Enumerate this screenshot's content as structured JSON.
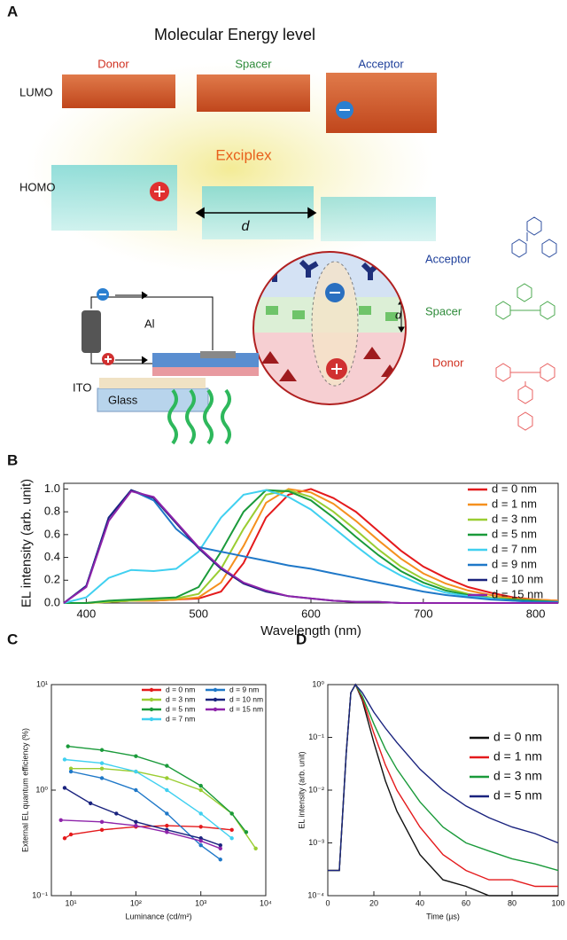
{
  "diagram": {
    "panel_label": "A",
    "title": "Molecular Energy level",
    "columns": [
      "Donor",
      "Spacer",
      "Acceptor"
    ],
    "levels": [
      "LUMO",
      "HOMO"
    ],
    "exciplex": "Exciplex",
    "distance": "d",
    "layers": [
      "Acceptor",
      "Spacer",
      "Donor"
    ],
    "layer_distance": "d",
    "device": [
      "Al",
      "ITO",
      "Glass"
    ]
  },
  "chart_data": [
    {
      "type": "line",
      "panel_label": "B",
      "x_label": "Wavelength (nm)",
      "y_label": "EL intensity (arb. unit)",
      "xlim": [
        380,
        820
      ],
      "xticks": [
        400,
        500,
        600,
        700,
        800
      ],
      "ylim": [
        0,
        1.05
      ],
      "yticks": [
        {
          "value": 0,
          "label": "0.0"
        },
        {
          "value": 0.2,
          "label": "0.2"
        },
        {
          "value": 0.4,
          "label": "0.4"
        },
        {
          "value": 0.6,
          "label": "0.6"
        },
        {
          "value": 0.8,
          "label": "0.8"
        },
        {
          "value": 1,
          "label": "1.0"
        }
      ],
      "legend": "upper right",
      "x": [
        380,
        400,
        420,
        440,
        460,
        480,
        500,
        520,
        540,
        560,
        580,
        600,
        620,
        640,
        660,
        680,
        700,
        720,
        740,
        760,
        780,
        800,
        820
      ],
      "series": [
        {
          "name": "d = 0 nm",
          "color": "#e41a1c",
          "values": [
            0,
            0,
            0.01,
            0.02,
            0.02,
            0.03,
            0.04,
            0.1,
            0.35,
            0.75,
            0.95,
            1.0,
            0.92,
            0.8,
            0.63,
            0.46,
            0.32,
            0.22,
            0.14,
            0.09,
            0.05,
            0.03,
            0.02
          ]
        },
        {
          "name": "d = 1 nm",
          "color": "#f5901e",
          "values": [
            0,
            0,
            0.01,
            0.02,
            0.02,
            0.03,
            0.05,
            0.18,
            0.5,
            0.88,
            1.0,
            0.97,
            0.87,
            0.72,
            0.55,
            0.39,
            0.26,
            0.17,
            0.11,
            0.07,
            0.04,
            0.03,
            0.02
          ]
        },
        {
          "name": "d = 3 nm",
          "color": "#9acd32",
          "values": [
            0,
            0,
            0.01,
            0.02,
            0.03,
            0.04,
            0.08,
            0.3,
            0.65,
            0.95,
            0.99,
            0.93,
            0.8,
            0.64,
            0.47,
            0.32,
            0.21,
            0.13,
            0.08,
            0.05,
            0.03,
            0.02,
            0.01
          ]
        },
        {
          "name": "d = 5 nm",
          "color": "#1a9a3a",
          "values": [
            0,
            0,
            0.02,
            0.03,
            0.04,
            0.05,
            0.14,
            0.45,
            0.8,
            0.99,
            0.98,
            0.9,
            0.75,
            0.58,
            0.42,
            0.28,
            0.18,
            0.11,
            0.07,
            0.04,
            0.03,
            0.02,
            0.01
          ]
        },
        {
          "name": "d = 7 nm",
          "color": "#40d0f0",
          "values": [
            0,
            0.05,
            0.22,
            0.29,
            0.28,
            0.3,
            0.45,
            0.75,
            0.95,
            0.99,
            0.93,
            0.82,
            0.66,
            0.5,
            0.35,
            0.24,
            0.15,
            0.09,
            0.06,
            0.04,
            0.02,
            0.01,
            0.01
          ]
        },
        {
          "name": "d = 9 nm",
          "color": "#1f78c8",
          "values": [
            0,
            0.15,
            0.75,
            0.99,
            0.9,
            0.65,
            0.49,
            0.45,
            0.41,
            0.37,
            0.33,
            0.3,
            0.26,
            0.22,
            0.18,
            0.14,
            0.1,
            0.07,
            0.05,
            0.03,
            0.02,
            0.01,
            0.01
          ]
        },
        {
          "name": "d = 10 nm",
          "color": "#1a237e",
          "values": [
            0,
            0.15,
            0.75,
            0.99,
            0.92,
            0.7,
            0.48,
            0.3,
            0.17,
            0.1,
            0.06,
            0.04,
            0.02,
            0.01,
            0.01,
            0,
            0,
            0,
            0,
            0,
            0,
            0,
            0
          ]
        },
        {
          "name": "d = 15 nm",
          "color": "#8e24aa",
          "values": [
            0,
            0.14,
            0.72,
            0.98,
            0.93,
            0.71,
            0.49,
            0.31,
            0.18,
            0.11,
            0.06,
            0.04,
            0.02,
            0.01,
            0.01,
            0,
            0,
            0,
            0,
            0,
            0,
            0,
            0
          ]
        }
      ]
    },
    {
      "type": "line",
      "panel_label": "C",
      "x_label": "Luminance (cd/m²)",
      "y_label": "External EL quantum efficiency (%)",
      "xscale": "log",
      "yscale": "log",
      "markers": true,
      "xlim": [
        5,
        10000
      ],
      "xticks": [
        {
          "value": 10,
          "label": "10¹"
        },
        {
          "value": 100,
          "label": "10²"
        },
        {
          "value": 1000,
          "label": "10³"
        },
        {
          "value": 10000,
          "label": "10⁴"
        }
      ],
      "ylim": [
        0.1,
        10
      ],
      "yticks": [
        {
          "value": 0.1,
          "label": "10⁻¹"
        },
        {
          "value": 1,
          "label": "10⁰"
        },
        {
          "value": 10,
          "label": "10¹"
        }
      ],
      "legend": "upper right",
      "legend_columns": 2,
      "series": [
        {
          "name": "d = 0 nm",
          "color": "#e41a1c",
          "x": [
            8,
            10,
            30,
            100,
            300,
            1000,
            3000
          ],
          "values": [
            0.35,
            0.38,
            0.42,
            0.45,
            0.46,
            0.45,
            0.42
          ]
        },
        {
          "name": "d = 3 nm",
          "color": "#9acd32",
          "x": [
            10,
            30,
            100,
            300,
            1000,
            3000,
            7000
          ],
          "values": [
            1.6,
            1.6,
            1.5,
            1.3,
            1.0,
            0.6,
            0.28
          ]
        },
        {
          "name": "d = 5 nm",
          "color": "#1a9a3a",
          "x": [
            9,
            30,
            100,
            300,
            1000,
            3000,
            5000
          ],
          "values": [
            2.6,
            2.4,
            2.1,
            1.7,
            1.1,
            0.6,
            0.4
          ]
        },
        {
          "name": "d = 7 nm",
          "color": "#40d0f0",
          "x": [
            8,
            30,
            100,
            300,
            1000,
            3000
          ],
          "values": [
            1.95,
            1.8,
            1.5,
            1.0,
            0.6,
            0.35
          ]
        },
        {
          "name": "d = 9 nm",
          "color": "#1f78c8",
          "x": [
            10,
            30,
            100,
            300,
            1000,
            2000
          ],
          "values": [
            1.5,
            1.3,
            1.0,
            0.6,
            0.3,
            0.22
          ]
        },
        {
          "name": "d = 10 nm",
          "color": "#1a237e",
          "x": [
            8,
            20,
            50,
            100,
            300,
            1000,
            2000
          ],
          "values": [
            1.05,
            0.75,
            0.6,
            0.5,
            0.42,
            0.35,
            0.3
          ]
        },
        {
          "name": "d = 15 nm",
          "color": "#8e24aa",
          "x": [
            7,
            30,
            100,
            300,
            1000,
            2000
          ],
          "values": [
            0.52,
            0.5,
            0.46,
            0.4,
            0.33,
            0.28
          ]
        }
      ]
    },
    {
      "type": "line",
      "panel_label": "D",
      "x_label": "Time (µs)",
      "y_label": "EL intensity (arb. unit)",
      "yscale": "log",
      "xlim": [
        0,
        100
      ],
      "xticks": [
        0,
        20,
        40,
        60,
        80,
        100
      ],
      "ylim": [
        0.0001,
        1
      ],
      "yticks": [
        {
          "value": 0.0001,
          "label": "10⁻⁴"
        },
        {
          "value": 0.001,
          "label": "10⁻³"
        },
        {
          "value": 0.01,
          "label": "10⁻²"
        },
        {
          "value": 0.1,
          "label": "10⁻¹"
        },
        {
          "value": 1,
          "label": "10⁰"
        }
      ],
      "legend": "upper right",
      "x": [
        0,
        5,
        8,
        10,
        12,
        15,
        20,
        25,
        30,
        40,
        50,
        60,
        70,
        80,
        90,
        100
      ],
      "series": [
        {
          "name": "d = 0 nm",
          "color": "#111111",
          "values": [
            0.0003,
            0.0003,
            0.05,
            0.7,
            1,
            0.5,
            0.08,
            0.015,
            0.004,
            0.0006,
            0.0002,
            0.00015,
            0.0001,
            0.0001,
            0.0001,
            0.0001
          ]
        },
        {
          "name": "d = 1 nm",
          "color": "#e41a1c",
          "values": [
            0.0003,
            0.0003,
            0.05,
            0.7,
            1,
            0.55,
            0.12,
            0.03,
            0.01,
            0.002,
            0.0006,
            0.0003,
            0.0002,
            0.0002,
            0.00015,
            0.00015
          ]
        },
        {
          "name": "d = 3 nm",
          "color": "#1a9a3a",
          "values": [
            0.0003,
            0.0003,
            0.05,
            0.7,
            1,
            0.6,
            0.18,
            0.06,
            0.025,
            0.006,
            0.002,
            0.001,
            0.0007,
            0.0005,
            0.0004,
            0.0003
          ]
        },
        {
          "name": "d = 5 nm",
          "color": "#1a237e",
          "values": [
            0.0003,
            0.0003,
            0.05,
            0.7,
            1,
            0.7,
            0.3,
            0.15,
            0.08,
            0.025,
            0.01,
            0.005,
            0.003,
            0.002,
            0.0015,
            0.001
          ]
        }
      ]
    }
  ]
}
